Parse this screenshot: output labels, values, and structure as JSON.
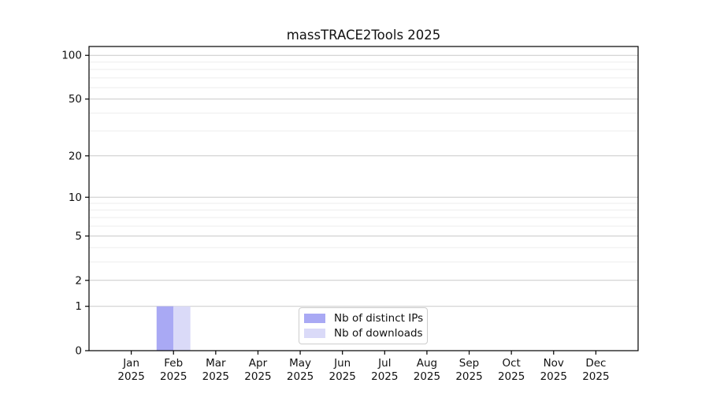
{
  "chart_data": {
    "type": "bar",
    "title": "massTRACE2Tools 2025",
    "x_tick_labels": [
      [
        "Jan",
        "2025"
      ],
      [
        "Feb",
        "2025"
      ],
      [
        "Mar",
        "2025"
      ],
      [
        "Apr",
        "2025"
      ],
      [
        "May",
        "2025"
      ],
      [
        "Jun",
        "2025"
      ],
      [
        "Jul",
        "2025"
      ],
      [
        "Aug",
        "2025"
      ],
      [
        "Sep",
        "2025"
      ],
      [
        "Oct",
        "2025"
      ],
      [
        "Nov",
        "2025"
      ],
      [
        "Dec",
        "2025"
      ]
    ],
    "series": [
      {
        "name": "Nb of distinct IPs",
        "color": "#a9a9f4",
        "values": [
          0,
          1,
          0,
          0,
          0,
          0,
          0,
          0,
          0,
          0,
          0,
          0
        ]
      },
      {
        "name": "Nb of downloads",
        "color": "#dadaf8",
        "values": [
          0,
          1,
          0,
          0,
          0,
          0,
          0,
          0,
          0,
          0,
          0,
          0
        ]
      }
    ],
    "xlabel": "",
    "ylabel": "",
    "yscale": "log1p",
    "ylim": [
      0,
      115
    ],
    "y_major_ticks": [
      0,
      1,
      2,
      5,
      10,
      20,
      50,
      100
    ],
    "y_minor_ticks": [
      3,
      4,
      6,
      7,
      8,
      9,
      30,
      40,
      60,
      70,
      80,
      90
    ],
    "grid": true,
    "legend_position": "lower center",
    "bar_group_width": 0.8
  }
}
